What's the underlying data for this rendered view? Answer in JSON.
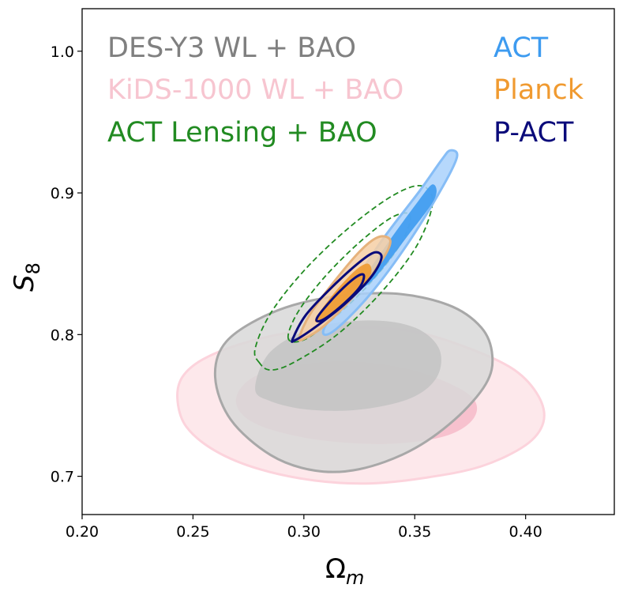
{
  "chart_data": {
    "type": "contour",
    "title": "",
    "xlabel": "Ω",
    "xlabel_subscript": "m",
    "ylabel": "S",
    "ylabel_subscript": "8",
    "xlim": [
      0.2,
      0.44
    ],
    "ylim": [
      0.673,
      1.03
    ],
    "xticks": [
      0.2,
      0.25,
      0.3,
      0.35,
      0.4
    ],
    "xtick_labels": [
      "0.20",
      "0.25",
      "0.30",
      "0.35",
      "0.40"
    ],
    "yticks": [
      0.7,
      0.8,
      0.9,
      1.0
    ],
    "ytick_labels": [
      "0.7",
      "0.8",
      "0.9",
      "1.0"
    ],
    "legend_left": [
      {
        "label": "DES-Y3 WL + BAO",
        "color": "#808080"
      },
      {
        "label": "KiDS-1000 WL + BAO",
        "color": "#f7c5d0"
      },
      {
        "label": "ACT Lensing + BAO",
        "color": "#228b22"
      }
    ],
    "legend_right": [
      {
        "label": "ACT",
        "color": "#3d9bf0"
      },
      {
        "label": "Planck",
        "color": "#f09a30"
      },
      {
        "label": "P-ACT",
        "color": "#0a0a7a"
      }
    ],
    "series": [
      {
        "name": "KiDS-1000 WL + BAO",
        "style": "filled",
        "outer_color": "#fde4e8",
        "outer_edge": "#fcd3dc",
        "inner_color": "#f6bccb",
        "outer": [
          [
            0.2452,
            0.77
          ],
          [
            0.255,
            0.783
          ],
          [
            0.275,
            0.795
          ],
          [
            0.3,
            0.803
          ],
          [
            0.325,
            0.805
          ],
          [
            0.35,
            0.802
          ],
          [
            0.375,
            0.79
          ],
          [
            0.395,
            0.775
          ],
          [
            0.406,
            0.756
          ],
          [
            0.408,
            0.738
          ],
          [
            0.4,
            0.722
          ],
          [
            0.38,
            0.707
          ],
          [
            0.355,
            0.699
          ],
          [
            0.33,
            0.695
          ],
          [
            0.305,
            0.697
          ],
          [
            0.28,
            0.705
          ],
          [
            0.26,
            0.718
          ],
          [
            0.247,
            0.735
          ],
          [
            0.243,
            0.754
          ]
        ],
        "inner": [
          [
            0.27,
            0.758
          ],
          [
            0.28,
            0.772
          ],
          [
            0.305,
            0.78
          ],
          [
            0.33,
            0.78
          ],
          [
            0.355,
            0.772
          ],
          [
            0.375,
            0.757
          ],
          [
            0.377,
            0.742
          ],
          [
            0.365,
            0.729
          ],
          [
            0.34,
            0.723
          ],
          [
            0.31,
            0.725
          ],
          [
            0.285,
            0.733
          ],
          [
            0.272,
            0.744
          ]
        ]
      },
      {
        "name": "DES-Y3 WL + BAO",
        "style": "filled",
        "outer_color": "#d8d8d8",
        "outer_edge": "#a8a8a8",
        "inner_color": "#c4c4c4",
        "outer": [
          [
            0.26,
            0.77
          ],
          [
            0.265,
            0.795
          ],
          [
            0.285,
            0.815
          ],
          [
            0.31,
            0.826
          ],
          [
            0.34,
            0.829
          ],
          [
            0.365,
            0.821
          ],
          [
            0.38,
            0.805
          ],
          [
            0.385,
            0.785
          ],
          [
            0.382,
            0.765
          ],
          [
            0.368,
            0.74
          ],
          [
            0.348,
            0.718
          ],
          [
            0.325,
            0.705
          ],
          [
            0.305,
            0.704
          ],
          [
            0.285,
            0.715
          ],
          [
            0.267,
            0.74
          ]
        ],
        "inner": [
          [
            0.278,
            0.762
          ],
          [
            0.285,
            0.788
          ],
          [
            0.305,
            0.805
          ],
          [
            0.33,
            0.81
          ],
          [
            0.35,
            0.805
          ],
          [
            0.361,
            0.79
          ],
          [
            0.36,
            0.77
          ],
          [
            0.348,
            0.755
          ],
          [
            0.325,
            0.747
          ],
          [
            0.302,
            0.747
          ],
          [
            0.285,
            0.753
          ]
        ]
      },
      {
        "name": "ACT Lensing + BAO",
        "style": "dashed",
        "color": "#228b22",
        "outer": [
          [
            0.28,
            0.78
          ],
          [
            0.278,
            0.79
          ],
          [
            0.285,
            0.815
          ],
          [
            0.3,
            0.845
          ],
          [
            0.32,
            0.875
          ],
          [
            0.34,
            0.898
          ],
          [
            0.353,
            0.905
          ],
          [
            0.358,
            0.893
          ],
          [
            0.351,
            0.863
          ],
          [
            0.335,
            0.83
          ],
          [
            0.315,
            0.8
          ],
          [
            0.295,
            0.78
          ],
          [
            0.285,
            0.775
          ]
        ],
        "inner": [
          [
            0.293,
            0.797
          ],
          [
            0.297,
            0.815
          ],
          [
            0.309,
            0.84
          ],
          [
            0.325,
            0.865
          ],
          [
            0.34,
            0.883
          ],
          [
            0.348,
            0.884
          ],
          [
            0.344,
            0.865
          ],
          [
            0.332,
            0.84
          ],
          [
            0.316,
            0.815
          ],
          [
            0.301,
            0.797
          ]
        ]
      },
      {
        "name": "ACT",
        "style": "filled",
        "outer_color": "#a9d1fb",
        "outer_edge": "#86bdf6",
        "inner_color": "#3d9bf0",
        "outer": [
          [
            0.309,
            0.804
          ],
          [
            0.32,
            0.83
          ],
          [
            0.335,
            0.866
          ],
          [
            0.352,
            0.901
          ],
          [
            0.362,
            0.923
          ],
          [
            0.366,
            0.93
          ],
          [
            0.369,
            0.925
          ],
          [
            0.361,
            0.9
          ],
          [
            0.345,
            0.86
          ],
          [
            0.328,
            0.825
          ],
          [
            0.313,
            0.802
          ]
        ],
        "inner": [
          [
            0.325,
            0.835
          ],
          [
            0.338,
            0.865
          ],
          [
            0.351,
            0.893
          ],
          [
            0.358,
            0.906
          ],
          [
            0.359,
            0.896
          ],
          [
            0.347,
            0.87
          ],
          [
            0.332,
            0.84
          ],
          [
            0.325,
            0.832
          ]
        ]
      },
      {
        "name": "Planck",
        "style": "filled",
        "outer_color": "#f6cfa4",
        "outer_edge": "#e6b27c",
        "inner_color": "#f09a30",
        "outer": [
          [
            0.298,
            0.798
          ],
          [
            0.303,
            0.815
          ],
          [
            0.315,
            0.84
          ],
          [
            0.326,
            0.86
          ],
          [
            0.334,
            0.869
          ],
          [
            0.339,
            0.866
          ],
          [
            0.335,
            0.852
          ],
          [
            0.323,
            0.828
          ],
          [
            0.309,
            0.806
          ],
          [
            0.3,
            0.797
          ]
        ],
        "inner": [
          [
            0.305,
            0.81
          ],
          [
            0.313,
            0.828
          ],
          [
            0.323,
            0.845
          ],
          [
            0.329,
            0.85
          ],
          [
            0.33,
            0.842
          ],
          [
            0.322,
            0.827
          ],
          [
            0.311,
            0.812
          ]
        ]
      },
      {
        "name": "P-ACT",
        "style": "outline",
        "color": "#0a0a7a",
        "outer": [
          [
            0.295,
            0.797
          ],
          [
            0.301,
            0.814
          ],
          [
            0.313,
            0.834
          ],
          [
            0.325,
            0.851
          ],
          [
            0.332,
            0.858
          ],
          [
            0.335,
            0.854
          ],
          [
            0.33,
            0.84
          ],
          [
            0.318,
            0.821
          ],
          [
            0.304,
            0.804
          ],
          [
            0.296,
            0.796
          ]
        ],
        "inner": [
          [
            0.306,
            0.812
          ],
          [
            0.314,
            0.827
          ],
          [
            0.323,
            0.84
          ],
          [
            0.327,
            0.842
          ],
          [
            0.325,
            0.833
          ],
          [
            0.316,
            0.819
          ],
          [
            0.308,
            0.81
          ]
        ]
      }
    ]
  }
}
